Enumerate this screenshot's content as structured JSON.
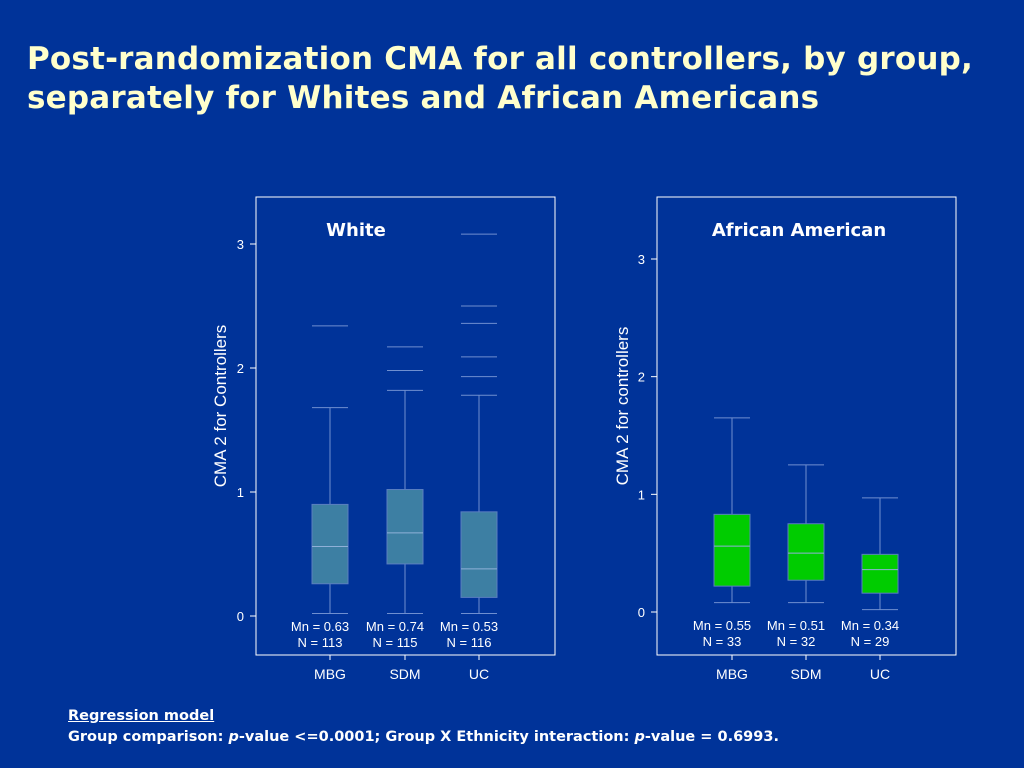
{
  "page": {
    "title_line1": "Post-randomization CMA for all controllers, by group,",
    "title_line2": "separately for Whites and African Americans",
    "regression_heading": "Regression model",
    "regression_text_1": "Group comparison: ",
    "regression_text_2": "p",
    "regression_text_3": "-value <=0.0001; Group X Ethnicity interaction: ",
    "regression_text_4": "p",
    "regression_text_5": "-value = 0.6993."
  },
  "colors": {
    "background": "#003399",
    "title": "#ffffcc",
    "white_box_fill": "#3d7fa3",
    "aa_box_fill": "#00cc00",
    "axis_text": "#ffffff",
    "frame": "#ffffff"
  },
  "chart_data": [
    {
      "type": "box",
      "title": "White",
      "ylabel": "CMA 2 for Controllers",
      "ylim": [
        -0.25,
        3.38
      ],
      "yticks": [
        "0",
        "1",
        "2",
        "3"
      ],
      "categories": [
        "MBG",
        "SDM",
        "UC"
      ],
      "box_color": "#3d7fa3",
      "boxes": [
        {
          "min": 0.02,
          "q1": 0.26,
          "median": 0.56,
          "q3": 0.9,
          "max": 1.68,
          "outliers": [
            2.34
          ]
        },
        {
          "min": 0.02,
          "q1": 0.42,
          "median": 0.67,
          "q3": 1.02,
          "max": 1.82,
          "outliers": [
            1.98,
            2.17
          ]
        },
        {
          "min": 0.02,
          "q1": 0.15,
          "median": 0.38,
          "q3": 0.84,
          "max": 1.78,
          "outliers": [
            1.93,
            2.09,
            2.36,
            2.5,
            3.08
          ]
        }
      ],
      "annotations": [
        {
          "mean": "Mn = 0.63",
          "n": "N = 113"
        },
        {
          "mean": "Mn = 0.74",
          "n": "N = 115"
        },
        {
          "mean": "Mn = 0.53",
          "n": "N = 116"
        }
      ]
    },
    {
      "type": "box",
      "title": "African American",
      "ylabel": "CMA 2 for controllers",
      "ylim": [
        -0.35,
        3.5
      ],
      "yticks": [
        "0",
        "1",
        "2",
        "3"
      ],
      "categories": [
        "MBG",
        "SDM",
        "UC"
      ],
      "box_color": "#00cc00",
      "boxes": [
        {
          "min": 0.08,
          "q1": 0.22,
          "median": 0.56,
          "q3": 0.83,
          "max": 1.65,
          "outliers": []
        },
        {
          "min": 0.08,
          "q1": 0.27,
          "median": 0.5,
          "q3": 0.75,
          "max": 1.25,
          "outliers": []
        },
        {
          "min": 0.02,
          "q1": 0.16,
          "median": 0.36,
          "q3": 0.49,
          "max": 0.97,
          "outliers": []
        }
      ],
      "annotations": [
        {
          "mean": "Mn = 0.55",
          "n": "N = 33"
        },
        {
          "mean": "Mn = 0.51",
          "n": "N = 32"
        },
        {
          "mean": "Mn = 0.34",
          "n": "N = 29"
        }
      ]
    }
  ]
}
